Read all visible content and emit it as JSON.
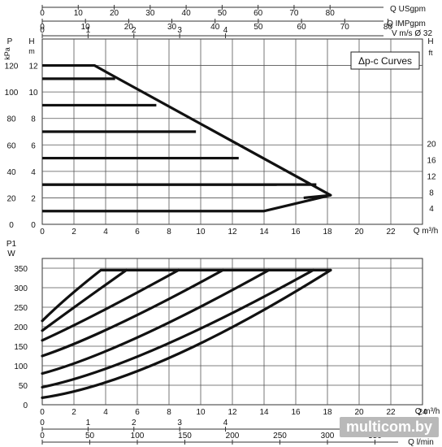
{
  "watermark": "multicom.by",
  "chart_data": [
    {
      "type": "line",
      "title": "",
      "legend_label": "Δp-c Curves",
      "legend_position": "top-right",
      "grid": true,
      "xlabel": "Q m³/h",
      "xlim": [
        0,
        24
      ],
      "x_ticks": [
        "0",
        "2",
        "4",
        "6",
        "8",
        "10",
        "12",
        "14",
        "16",
        "18",
        "20",
        "22"
      ],
      "left_axis_1": {
        "label_top": "P",
        "label_unit": "kPa",
        "ticks": [
          "0",
          "20",
          "40",
          "60",
          "80",
          "100",
          "120"
        ],
        "ylim": [
          0,
          140
        ]
      },
      "left_axis_2": {
        "label_top": "H",
        "label_unit": "m",
        "ticks": [
          "0",
          "2",
          "4",
          "6",
          "8",
          "10",
          "12"
        ],
        "ylim": [
          0,
          14
        ]
      },
      "right_axis": {
        "label_top": "H",
        "label_unit": "ft",
        "ticks": [
          "4",
          "8",
          "12",
          "16",
          "20"
        ],
        "ylim": [
          0,
          46
        ]
      },
      "top_axes": [
        {
          "label_q": "Q",
          "label_unit": "USgpm",
          "ticks": [
            "0",
            "10",
            "20",
            "30",
            "40",
            "50",
            "60",
            "70",
            "80"
          ],
          "xlim": [
            0,
            105.7
          ]
        },
        {
          "label_q": "Q",
          "label_unit": "IMPgpm",
          "ticks": [
            "0",
            "10",
            "20",
            "30",
            "40",
            "50",
            "60",
            "70",
            "80"
          ],
          "xlim": [
            0,
            88
          ]
        },
        {
          "label": "V m/s",
          "label_d": "Ø 32",
          "ticks": [
            "0",
            "1",
            "2",
            "3",
            "4"
          ],
          "xlim": [
            0,
            8.3
          ]
        }
      ],
      "series": [
        {
          "x": [
            0,
            4.6
          ],
          "y": [
            11,
            11
          ]
        },
        {
          "x": [
            0,
            7.2
          ],
          "y": [
            9,
            9
          ]
        },
        {
          "x": [
            0,
            9.7
          ],
          "y": [
            7,
            7
          ]
        },
        {
          "x": [
            0,
            12.4
          ],
          "y": [
            5,
            5
          ]
        },
        {
          "x": [
            0,
            14.8
          ],
          "y": [
            3,
            3
          ]
        },
        {
          "x": [
            0,
            17.3
          ],
          "y": [
            3,
            3
          ]
        },
        {
          "x": [
            0,
            14.0,
            18.2
          ],
          "y": [
            1,
            1,
            2.2
          ]
        },
        {
          "x": [
            0,
            3.3,
            4.2,
            18.2,
            16.5
          ],
          "y": [
            12,
            12,
            11.4,
            2.2,
            2.0
          ]
        }
      ]
    },
    {
      "type": "line",
      "title": "",
      "grid": true,
      "xlabel": "Q m³/h",
      "xlim": [
        0,
        24
      ],
      "x_ticks": [
        "0",
        "2",
        "4",
        "6",
        "8",
        "10",
        "12",
        "14",
        "16",
        "18",
        "20",
        "22",
        "24"
      ],
      "ylabel_top": "P1",
      "ylabel_unit": "W",
      "ylim": [
        0,
        375
      ],
      "y_ticks": [
        "0",
        "50",
        "100",
        "150",
        "200",
        "250",
        "300",
        "350"
      ],
      "bottom_axes": [
        {
          "label": "",
          "ticks": [
            "0",
            "1",
            "2",
            "3",
            "4"
          ],
          "xlim": [
            0,
            8.3
          ]
        },
        {
          "label_q": "Q",
          "label_unit": "l/min",
          "ticks": [
            "0",
            "50",
            "100",
            "150",
            "200",
            "250",
            "300",
            "350"
          ],
          "xlim": [
            0,
            400
          ]
        }
      ],
      "series": [
        {
          "x": [
            0,
            1.5,
            3.7,
            18.2
          ],
          "y": [
            215,
            275,
            345,
            345
          ]
        },
        {
          "x": [
            0,
            2,
            5.3
          ],
          "y": [
            190,
            250,
            345
          ]
        },
        {
          "x": [
            0,
            3,
            8.6
          ],
          "y": [
            165,
            220,
            345
          ]
        },
        {
          "x": [
            0,
            4,
            11.4
          ],
          "y": [
            125,
            180,
            345
          ]
        },
        {
          "x": [
            0,
            5,
            14.3
          ],
          "y": [
            80,
            135,
            345
          ]
        },
        {
          "x": [
            0,
            6,
            17.1
          ],
          "y": [
            45,
            95,
            345
          ]
        },
        {
          "x": [
            0,
            7,
            18.2
          ],
          "y": [
            18,
            60,
            345
          ]
        }
      ]
    }
  ]
}
